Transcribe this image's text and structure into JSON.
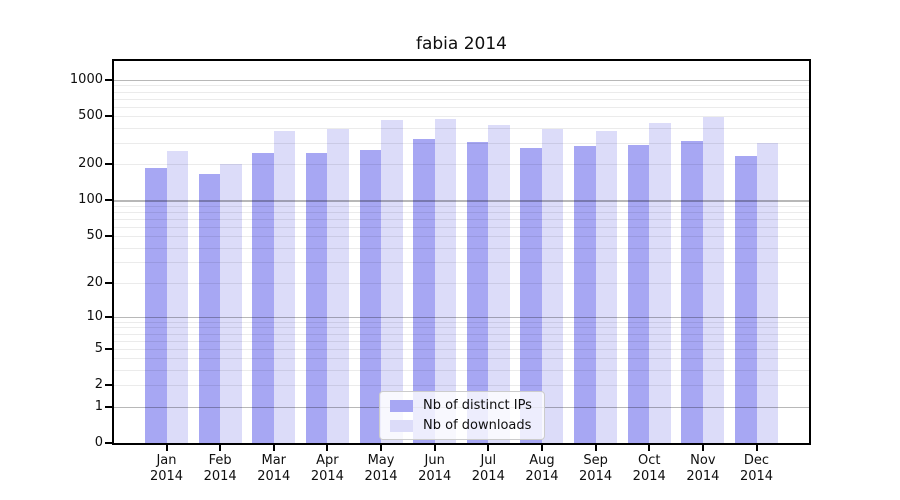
{
  "chart_data": {
    "type": "bar",
    "title": "fabia 2014",
    "scale": "log1p",
    "grid": true,
    "legend_position": "lower center",
    "categories": [
      "Jan",
      "Feb",
      "Mar",
      "Apr",
      "May",
      "Jun",
      "Jul",
      "Aug",
      "Sep",
      "Oct",
      "Nov",
      "Dec"
    ],
    "year_label": "2014",
    "series": [
      {
        "name": "Nb of distinct IPs",
        "color": "#a7a7f3",
        "values": [
          185,
          165,
          250,
          250,
          262,
          325,
          305,
          273,
          282,
          288,
          310,
          236
        ]
      },
      {
        "name": "Nb of downloads",
        "color": "#dcdcf9",
        "values": [
          255,
          200,
          375,
          390,
          465,
          477,
          425,
          390,
          375,
          435,
          490,
          300
        ]
      }
    ],
    "y_ticks": [
      1000,
      500,
      200,
      100,
      50,
      20,
      10,
      5,
      2,
      1,
      0
    ],
    "major_grid_values": [
      1,
      10,
      100,
      1000
    ],
    "ylim": [
      0,
      1430
    ],
    "xlabel": "",
    "ylabel": "",
    "axis_color": "#000000"
  }
}
